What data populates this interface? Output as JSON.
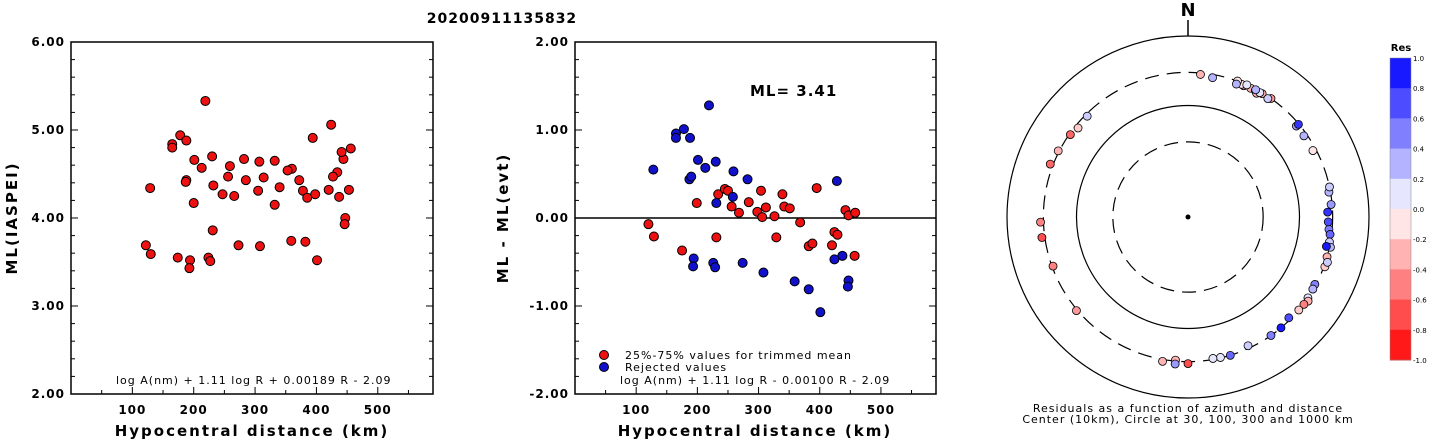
{
  "title": "20200911135832",
  "chart_data": [
    {
      "type": "scatter",
      "xlabel": "Hypocentral distance (km)",
      "ylabel": "ML(IASPEI)",
      "xlim": [
        0,
        590
      ],
      "ylim": [
        2.0,
        6.0
      ],
      "xticks": [
        "100",
        "200",
        "300",
        "400",
        "500"
      ],
      "yticks": [
        "2.00",
        "3.00",
        "4.00",
        "5.00",
        "6.00"
      ],
      "annotation": "log A(nm) + 1.11 log R + 0.00189 R - 2.09",
      "series": [
        {
          "color": "#ee1111",
          "points": [
            [
              219,
              5.33
            ],
            [
              178,
              4.94
            ],
            [
              188,
              4.88
            ],
            [
              165,
              4.84
            ],
            [
              165,
              4.8
            ],
            [
              230,
              4.7
            ],
            [
              282,
              4.67
            ],
            [
              307,
              4.64
            ],
            [
              332,
              4.65
            ],
            [
              259,
              4.59
            ],
            [
              201,
              4.66
            ],
            [
              213,
              4.57
            ],
            [
              360,
              4.56
            ],
            [
              353,
              4.54
            ],
            [
              394,
              4.91
            ],
            [
              424,
              5.06
            ],
            [
              444,
              4.67
            ],
            [
              441,
              4.75
            ],
            [
              456,
              4.79
            ],
            [
              434,
              4.52
            ],
            [
              427,
              4.47
            ],
            [
              314,
              4.46
            ],
            [
              256,
              4.47
            ],
            [
              372,
              4.43
            ],
            [
              188,
              4.43
            ],
            [
              187,
              4.41
            ],
            [
              285,
              4.43
            ],
            [
              232,
              4.37
            ],
            [
              266,
              4.25
            ],
            [
              247,
              4.27
            ],
            [
              129,
              4.34
            ],
            [
              340,
              4.35
            ],
            [
              420,
              4.32
            ],
            [
              453,
              4.32
            ],
            [
              378,
              4.31
            ],
            [
              398,
              4.27
            ],
            [
              305,
              4.31
            ],
            [
              385,
              4.23
            ],
            [
              437,
              4.24
            ],
            [
              200,
              4.17
            ],
            [
              332,
              4.15
            ],
            [
              447,
              4.0
            ],
            [
              446,
              3.93
            ],
            [
              231,
              3.86
            ],
            [
              359,
              3.74
            ],
            [
              382,
              3.73
            ],
            [
              122,
              3.69
            ],
            [
              273,
              3.69
            ],
            [
              308,
              3.68
            ],
            [
              130,
              3.59
            ],
            [
              174,
              3.55
            ],
            [
              224,
              3.55
            ],
            [
              227,
              3.51
            ],
            [
              194,
              3.52
            ],
            [
              401,
              3.52
            ],
            [
              193,
              3.43
            ]
          ]
        }
      ]
    },
    {
      "type": "scatter",
      "xlabel": "Hypocentral distance (km)",
      "ylabel": "ML - ML(evt)",
      "xlim": [
        0,
        590
      ],
      "ylim": [
        -2.0,
        2.0
      ],
      "xticks": [
        "100",
        "200",
        "300",
        "400",
        "500"
      ],
      "yticks": [
        "-2.00",
        "-1.00",
        "0.00",
        "1.00",
        "2.00"
      ],
      "reference_line": 0.0,
      "ml_label": "ML= 3.41",
      "legend": [
        "25%-75% values for trimmed mean",
        "Rejected values"
      ],
      "annotation": "log A(nm) + 1.11 log R - 0.00100 R - 2.09",
      "series": [
        {
          "color": "#ee1111",
          "points": [
            [
              234,
              0.27
            ],
            [
              245,
              0.33
            ],
            [
              250,
              0.31
            ],
            [
              256,
              0.13
            ],
            [
              268,
              0.06
            ],
            [
              284,
              0.18
            ],
            [
              298,
              0.07
            ],
            [
              304,
              0.31
            ],
            [
              306,
              0.01
            ],
            [
              312,
              0.12
            ],
            [
              326,
              0.02
            ],
            [
              329,
              -0.22
            ],
            [
              339,
              0.27
            ],
            [
              342,
              0.13
            ],
            [
              351,
              0.11
            ],
            [
              368,
              -0.05
            ],
            [
              382,
              -0.32
            ],
            [
              388,
              -0.29
            ],
            [
              395,
              0.34
            ],
            [
              420,
              -0.31
            ],
            [
              424,
              -0.16
            ],
            [
              429,
              -0.19
            ],
            [
              442,
              0.09
            ],
            [
              447,
              0.03
            ],
            [
              458,
              0.06
            ],
            [
              457,
              -0.43
            ],
            [
              120,
              -0.07
            ],
            [
              129,
              -0.21
            ],
            [
              175,
              -0.37
            ],
            [
              231,
              -0.22
            ],
            [
              199,
              0.17
            ]
          ]
        },
        {
          "color": "#1111cc",
          "points": [
            [
              219,
              1.28
            ],
            [
              178,
              1.01
            ],
            [
              165,
              0.96
            ],
            [
              165,
              0.91
            ],
            [
              188,
              0.91
            ],
            [
              201,
              0.66
            ],
            [
              213,
              0.57
            ],
            [
              230,
              0.64
            ],
            [
              259,
              0.53
            ],
            [
              282,
              0.44
            ],
            [
              128,
              0.55
            ],
            [
              187,
              0.44
            ],
            [
              190,
              0.47
            ],
            [
              258,
              0.24
            ],
            [
              231,
              0.17
            ],
            [
              359,
              -0.72
            ],
            [
              382,
              -0.81
            ],
            [
              401,
              -1.07
            ],
            [
              428,
              0.42
            ],
            [
              437,
              -0.43
            ],
            [
              447,
              -0.71
            ],
            [
              446,
              -0.78
            ],
            [
              424,
              -0.47
            ],
            [
              308,
              -0.62
            ],
            [
              274,
              -0.51
            ],
            [
              226,
              -0.51
            ],
            [
              194,
              -0.46
            ],
            [
              193,
              -0.55
            ],
            [
              229,
              -0.56
            ]
          ]
        }
      ]
    },
    {
      "type": "scatter",
      "title": "N",
      "caption_line1": "Residuals as a function of azimuth and distance",
      "caption_line2": "Center (10km), Circle at 30, 100, 300 and 1000 km",
      "colorbar_title": "Res",
      "colorbar_ticks": [
        "1.0",
        "0.8",
        "0.6",
        "0.4",
        "0.2",
        "0.0",
        "-0.2",
        "-0.4",
        "-0.6",
        "-0.8",
        "-1.0"
      ],
      "rings_km": [
        30,
        100,
        300,
        1000
      ],
      "points_az_dist_res": [
        [
          23,
          280,
          -0.5
        ],
        [
          26,
          286,
          -0.3
        ],
        [
          28,
          287,
          -0.2
        ],
        [
          22,
          285,
          -0.1
        ],
        [
          31,
          293,
          -0.3
        ],
        [
          35,
          300,
          -0.4
        ],
        [
          29,
          270,
          -0.3
        ],
        [
          20,
          300,
          -0.1
        ],
        [
          24,
          300,
          0.1
        ],
        [
          34,
          282,
          0.2
        ],
        [
          30,
          290,
          0.1
        ],
        [
          28,
          295,
          0.3
        ],
        [
          20,
          270,
          0.3
        ],
        [
          10,
          270,
          0.3
        ],
        [
          5,
          285,
          -0.3
        ],
        [
          50,
          270,
          0.4
        ],
        [
          55,
          270,
          0.3
        ],
        [
          62,
          270,
          -0.1
        ],
        [
          50,
          295,
          0.8
        ],
        [
          80,
          285,
          0.3
        ],
        [
          88,
          255,
          0.8
        ],
        [
          95,
          270,
          0.5
        ],
        [
          92,
          260,
          0.7
        ],
        [
          85,
          290,
          0.4
        ],
        [
          78,
          300,
          0.2
        ],
        [
          97,
          285,
          0.6
        ],
        [
          100,
          290,
          0.2
        ],
        [
          102,
          310,
          0.3
        ],
        [
          106,
          300,
          -0.3
        ],
        [
          110,
          310,
          -0.2
        ],
        [
          108,
          320,
          0.2
        ],
        [
          102,
          270,
          0.9
        ],
        [
          118,
          290,
          0.5
        ],
        [
          120,
          295,
          0.3
        ],
        [
          124,
          300,
          0.1
        ],
        [
          125,
          320,
          -0.3
        ],
        [
          127,
          305,
          -0.5
        ],
        [
          135,
          280,
          0.7
        ],
        [
          140,
          300,
          0.9
        ],
        [
          145,
          300,
          0.5
        ],
        [
          130,
          300,
          -0.2
        ],
        [
          155,
          275,
          0.2
        ],
        [
          163,
          300,
          0.6
        ],
        [
          167,
          295,
          0.1
        ],
        [
          170,
          290,
          0.1
        ],
        [
          180,
          320,
          -0.7
        ],
        [
          185,
          290,
          -0.3
        ],
        [
          190,
          320,
          -0.3
        ],
        [
          185,
          330,
          0.4
        ],
        [
          230,
          310,
          -0.4
        ],
        [
          250,
          290,
          -0.5
        ],
        [
          262,
          330,
          -0.7
        ],
        [
          268,
          330,
          -0.5
        ],
        [
          291,
          330,
          -0.6
        ],
        [
          297,
          310,
          -0.3
        ],
        [
          305,
          290,
          -0.6
        ],
        [
          309,
          270,
          -0.2
        ],
        [
          315,
          280,
          0.2
        ]
      ]
    }
  ]
}
